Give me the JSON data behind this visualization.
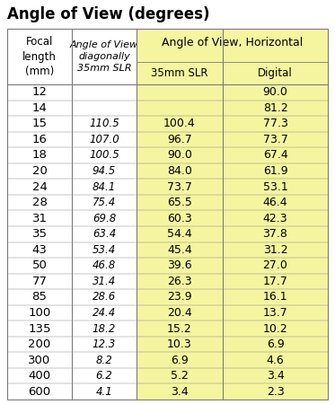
{
  "title": "Angle of View (degrees)",
  "rows": [
    [
      "12",
      "",
      "",
      "90.0"
    ],
    [
      "14",
      "",
      "",
      "81.2"
    ],
    [
      "15",
      "110.5",
      "100.4",
      "77.3"
    ],
    [
      "16",
      "107.0",
      "96.7",
      "73.7"
    ],
    [
      "18",
      "100.5",
      "90.0",
      "67.4"
    ],
    [
      "20",
      "94.5",
      "84.0",
      "61.9"
    ],
    [
      "24",
      "84.1",
      "73.7",
      "53.1"
    ],
    [
      "28",
      "75.4",
      "65.5",
      "46.4"
    ],
    [
      "31",
      "69.8",
      "60.3",
      "42.3"
    ],
    [
      "35",
      "63.4",
      "54.4",
      "37.8"
    ],
    [
      "43",
      "53.4",
      "45.4",
      "31.2"
    ],
    [
      "50",
      "46.8",
      "39.6",
      "27.0"
    ],
    [
      "77",
      "31.4",
      "26.3",
      "17.7"
    ],
    [
      "85",
      "28.6",
      "23.9",
      "16.1"
    ],
    [
      "100",
      "24.4",
      "20.4",
      "13.7"
    ],
    [
      "135",
      "18.2",
      "15.2",
      "10.2"
    ],
    [
      "200",
      "12.3",
      "10.3",
      "6.9"
    ],
    [
      "300",
      "8.2",
      "6.9",
      "4.6"
    ],
    [
      "400",
      "6.2",
      "5.2",
      "3.4"
    ],
    [
      "600",
      "4.1",
      "3.4",
      "2.3"
    ]
  ],
  "highlight_color": "#f5f5a0",
  "border_color": "#7a7a7a",
  "bg_color": "#ffffff",
  "title_fontsize": 12,
  "header_fontsize": 8.5,
  "data_fontsize": 9
}
